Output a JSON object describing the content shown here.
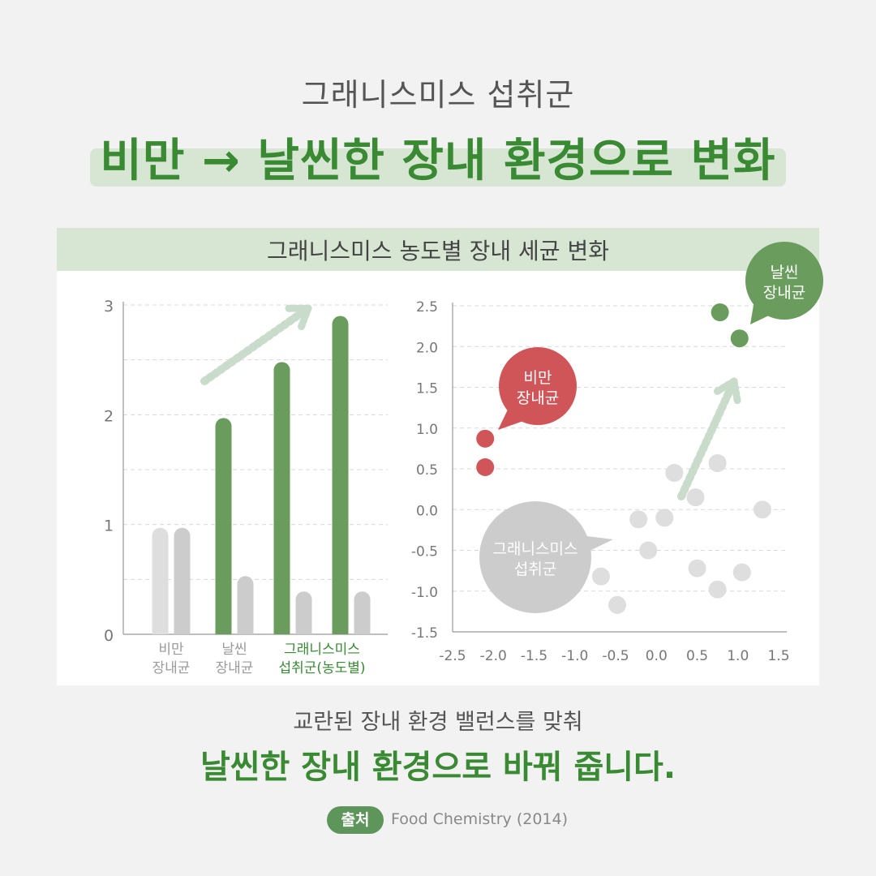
{
  "header": {
    "subtitle": "그래니스미스 섭취군",
    "headline": "비만 → 날씬한 장내 환경으로 변화"
  },
  "panel": {
    "title": "그래니스미스 농도별 장내 세균 변화"
  },
  "colors": {
    "green": "#6a9c5e",
    "red": "#d05558",
    "light_gray": "#dedede",
    "gray": "#cccccc",
    "arrow": "#c9dccb",
    "headline_green": "#3a8a34"
  },
  "chart_data": [
    {
      "type": "bar",
      "ylim": [
        0,
        3
      ],
      "yticks": [
        0,
        1,
        2,
        3
      ],
      "groups": [
        {
          "label": [
            "비만",
            "장내균"
          ],
          "label_color": "#9a9a9a",
          "bars": [
            {
              "value": 0.97,
              "color": "#dedede"
            },
            {
              "value": 0.97,
              "color": "#cccccc"
            }
          ]
        },
        {
          "label": [
            "날씬",
            "장내균"
          ],
          "label_color": "#9a9a9a",
          "bars": [
            {
              "value": 1.97,
              "color": "#6a9c5e"
            },
            {
              "value": 0.53,
              "color": "#cccccc"
            }
          ]
        },
        {
          "label": [
            "그래니스미스",
            "섭취군(농도별)"
          ],
          "label_color": "#3a8a34",
          "bars": [
            {
              "value": 2.48,
              "color": "#6a9c5e"
            },
            {
              "value": 0.39,
              "color": "#cccccc"
            }
          ]
        },
        {
          "label": [
            "",
            ""
          ],
          "label_color": "#3a8a34",
          "bars": [
            {
              "value": 2.9,
              "color": "#6a9c5e"
            },
            {
              "value": 0.39,
              "color": "#cccccc"
            }
          ]
        }
      ]
    },
    {
      "type": "scatter",
      "xlim": [
        -2.5,
        1.5
      ],
      "ylim": [
        -1.5,
        2.5
      ],
      "xticks": [
        "-2.5",
        "-2.0",
        "-1.5",
        "-1.0",
        "-0.5",
        "0.0",
        "0.5",
        "1.0",
        "1.5"
      ],
      "yticks": [
        "2.5",
        "2.0",
        "1.5",
        "1.0",
        "0.5",
        "0.0",
        "-0.5",
        "-1.0",
        "-1.5"
      ],
      "series": [
        {
          "key": "obese",
          "color": "#d05558",
          "points": [
            [
              -2.1,
              0.87
            ],
            [
              -2.1,
              0.52
            ]
          ]
        },
        {
          "key": "lean",
          "color": "#6a9c5e",
          "points": [
            [
              0.78,
              2.42
            ],
            [
              1.02,
              2.1
            ]
          ]
        },
        {
          "key": "granny",
          "color": "#dedede",
          "points": [
            [
              -0.68,
              -0.82
            ],
            [
              -0.48,
              -1.17
            ],
            [
              -0.22,
              -0.12
            ],
            [
              -0.1,
              -0.5
            ],
            [
              0.1,
              -0.1
            ],
            [
              0.22,
              0.45
            ],
            [
              0.48,
              0.15
            ],
            [
              0.5,
              -0.72
            ],
            [
              0.75,
              0.57
            ],
            [
              0.75,
              -0.98
            ],
            [
              1.05,
              -0.77
            ],
            [
              1.3,
              0.0
            ]
          ]
        }
      ],
      "callouts": [
        {
          "key": "obese",
          "text": [
            "비만",
            "장내균"
          ]
        },
        {
          "key": "lean",
          "text": [
            "날씬",
            "장내균"
          ]
        },
        {
          "key": "granny",
          "text": [
            "그래니스미스",
            "섭취군"
          ]
        }
      ]
    }
  ],
  "footer": {
    "sub": "교란된 장내 환경 밸런스를 맞춰",
    "main": "날씬한 장내 환경으로 바꿔 줍니다.",
    "source_badge": "출처",
    "source_text": "Food Chemistry (2014)"
  }
}
